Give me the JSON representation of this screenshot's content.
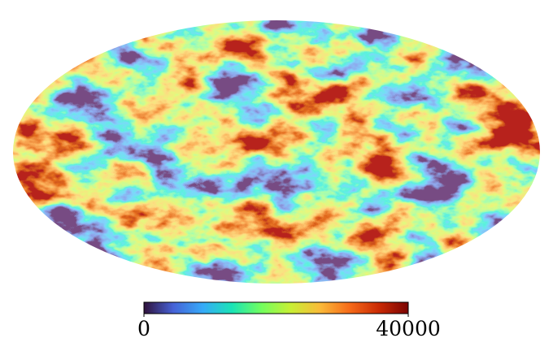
{
  "chart_data": {
    "type": "mollweide-map",
    "colormap": [
      "#30123b",
      "#4662d7",
      "#36aaf9",
      "#1ae4b6",
      "#72fe5e",
      "#c8ef34",
      "#faba39",
      "#f66b19",
      "#ca2a04",
      "#7a0403"
    ],
    "colorbar": {
      "lim": [
        0,
        40000
      ],
      "ticks": [
        0,
        40000
      ]
    }
  }
}
